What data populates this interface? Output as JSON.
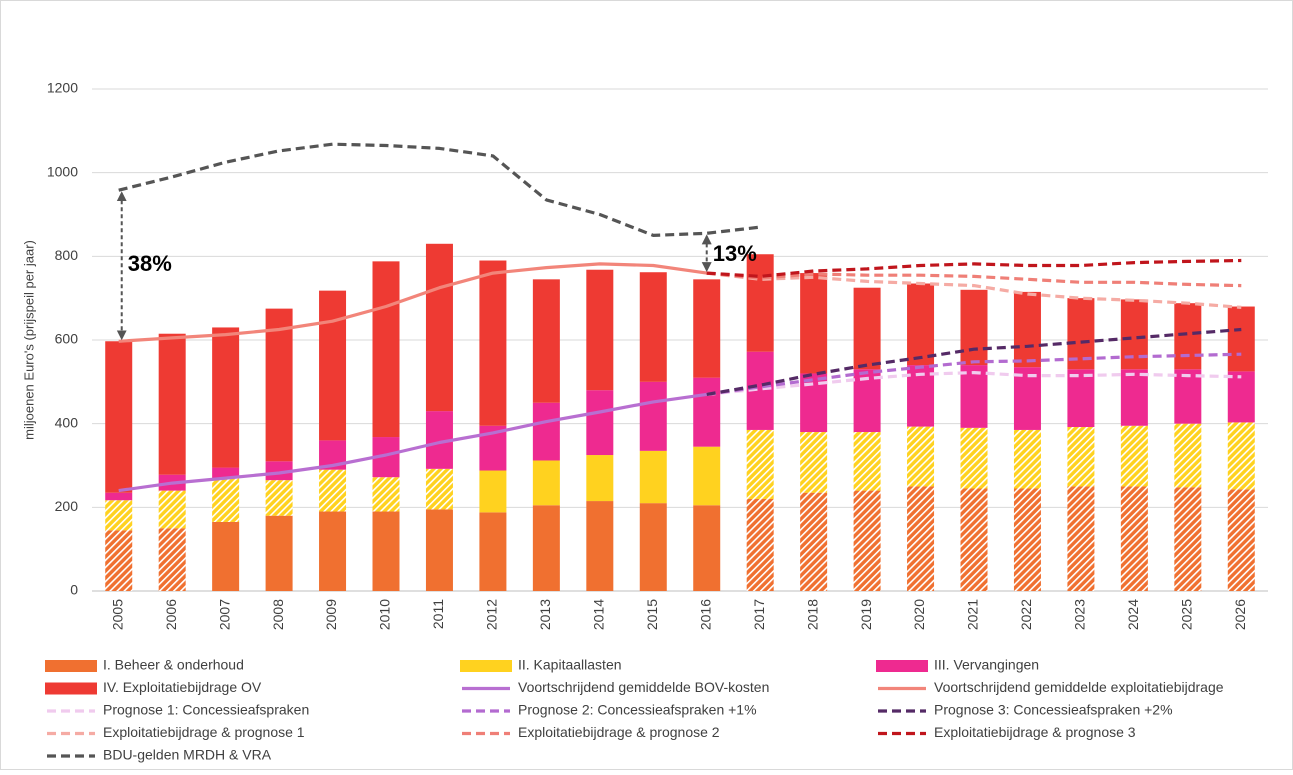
{
  "chart_data": {
    "type": "bar",
    "y_label": "miljoenen Euro's (prijspeil per jaar)",
    "categories": [
      "2005",
      "2006",
      "2007",
      "2008",
      "2009",
      "2010",
      "2011",
      "2012",
      "2013",
      "2014",
      "2015",
      "2016",
      "2017",
      "2018",
      "2019",
      "2020",
      "2021",
      "2022",
      "2023",
      "2024",
      "2025",
      "2026"
    ],
    "ylim": [
      0,
      1200
    ],
    "yticks": [
      0,
      200,
      400,
      600,
      800,
      1000,
      1200
    ],
    "grid": true,
    "legend": "bottom",
    "series": [
      {
        "name": "I. Beheer & onderhoud",
        "type": "bar",
        "color": "#f07030",
        "values": [
          145,
          150,
          165,
          180,
          190,
          190,
          195,
          188,
          205,
          215,
          210,
          205,
          220,
          235,
          240,
          250,
          245,
          245,
          250,
          250,
          248,
          243
        ],
        "hatched": [
          true,
          true,
          false,
          false,
          false,
          false,
          false,
          false,
          false,
          false,
          false,
          false,
          true,
          true,
          true,
          true,
          true,
          true,
          true,
          true,
          true,
          true
        ]
      },
      {
        "name": "II. Kapitaallasten",
        "type": "bar",
        "color": "#ffd21f",
        "values": [
          72,
          90,
          105,
          85,
          100,
          82,
          97,
          100,
          107,
          110,
          125,
          140,
          165,
          145,
          140,
          143,
          145,
          140,
          142,
          145,
          152,
          160
        ],
        "hatched": [
          true,
          true,
          true,
          true,
          true,
          true,
          true,
          false,
          false,
          false,
          false,
          false,
          true,
          true,
          true,
          true,
          true,
          true,
          true,
          true,
          true,
          true
        ]
      },
      {
        "name": "III. Vervangingen",
        "type": "bar",
        "color": "#ee2a90",
        "values": [
          18,
          38,
          25,
          45,
          70,
          96,
          138,
          107,
          138,
          155,
          165,
          165,
          187,
          140,
          150,
          147,
          150,
          150,
          138,
          135,
          130,
          122
        ]
      },
      {
        "name": "IV. Exploitatiebijdrage OV",
        "type": "bar",
        "color": "#ee3a33",
        "values": [
          362,
          337,
          335,
          365,
          358,
          420,
          400,
          395,
          295,
          288,
          262,
          235,
          233,
          240,
          195,
          195,
          180,
          180,
          170,
          167,
          158,
          155
        ]
      },
      {
        "name": "Voortschrijdend gemiddelde BOV-kosten",
        "type": "line",
        "dashed": false,
        "color": "#b86fd1",
        "values": [
          240,
          258,
          270,
          282,
          300,
          325,
          355,
          378,
          405,
          428,
          452,
          470,
          null,
          null,
          null,
          null,
          null,
          null,
          null,
          null,
          null,
          null
        ]
      },
      {
        "name": "Voortschrijdend gemiddelde exploitatiebijdrage",
        "type": "line",
        "dashed": false,
        "color": "#f2857a",
        "values": [
          597,
          605,
          613,
          625,
          645,
          680,
          725,
          760,
          773,
          782,
          778,
          760,
          null,
          null,
          null,
          null,
          null,
          null,
          null,
          null,
          null,
          null
        ]
      },
      {
        "name": "Prognose 1: Concessieafspraken",
        "type": "line",
        "dashed": true,
        "color": "#f0cbee",
        "values": [
          null,
          null,
          null,
          null,
          null,
          null,
          null,
          null,
          null,
          null,
          null,
          470,
          483,
          495,
          508,
          518,
          522,
          515,
          515,
          518,
          515,
          512
        ]
      },
      {
        "name": "Prognose 2: Concessieafspraken +1%",
        "type": "line",
        "dashed": true,
        "color": "#b36bd0",
        "values": [
          null,
          null,
          null,
          null,
          null,
          null,
          null,
          null,
          null,
          null,
          null,
          470,
          488,
          505,
          522,
          535,
          548,
          550,
          555,
          560,
          563,
          566
        ]
      },
      {
        "name": "Prognose 3: Concessieafspraken +2%",
        "type": "line",
        "dashed": true,
        "color": "#552a66",
        "values": [
          null,
          null,
          null,
          null,
          null,
          null,
          null,
          null,
          null,
          null,
          null,
          470,
          492,
          518,
          540,
          558,
          578,
          585,
          595,
          605,
          615,
          625
        ]
      },
      {
        "name": "Exploitatiebijdrage & prognose 1",
        "type": "line",
        "dashed": true,
        "color": "#f5aba4",
        "values": [
          null,
          null,
          null,
          null,
          null,
          null,
          null,
          null,
          null,
          null,
          null,
          760,
          745,
          750,
          740,
          735,
          730,
          710,
          700,
          695,
          688,
          678
        ]
      },
      {
        "name": "Exploitatiebijdrage & prognose 2",
        "type": "line",
        "dashed": true,
        "color": "#ef7f77",
        "values": [
          null,
          null,
          null,
          null,
          null,
          null,
          null,
          null,
          null,
          null,
          null,
          760,
          748,
          758,
          755,
          755,
          752,
          745,
          738,
          738,
          733,
          730
        ]
      },
      {
        "name": "Exploitatiebijdrage & prognose 3",
        "type": "line",
        "dashed": true,
        "color": "#c0151c",
        "values": [
          null,
          null,
          null,
          null,
          null,
          null,
          null,
          null,
          null,
          null,
          null,
          760,
          752,
          765,
          770,
          778,
          782,
          778,
          778,
          785,
          788,
          790
        ]
      },
      {
        "name": "BDU-gelden MRDH & VRA",
        "type": "line",
        "dashed": true,
        "color": "#555555",
        "values": [
          958,
          990,
          1025,
          1052,
          1068,
          1065,
          1058,
          1040,
          935,
          900,
          850,
          855,
          870,
          null,
          null,
          null,
          null,
          null,
          null,
          null,
          null,
          null
        ]
      }
    ],
    "annotations": [
      "38%",
      "13%"
    ]
  }
}
